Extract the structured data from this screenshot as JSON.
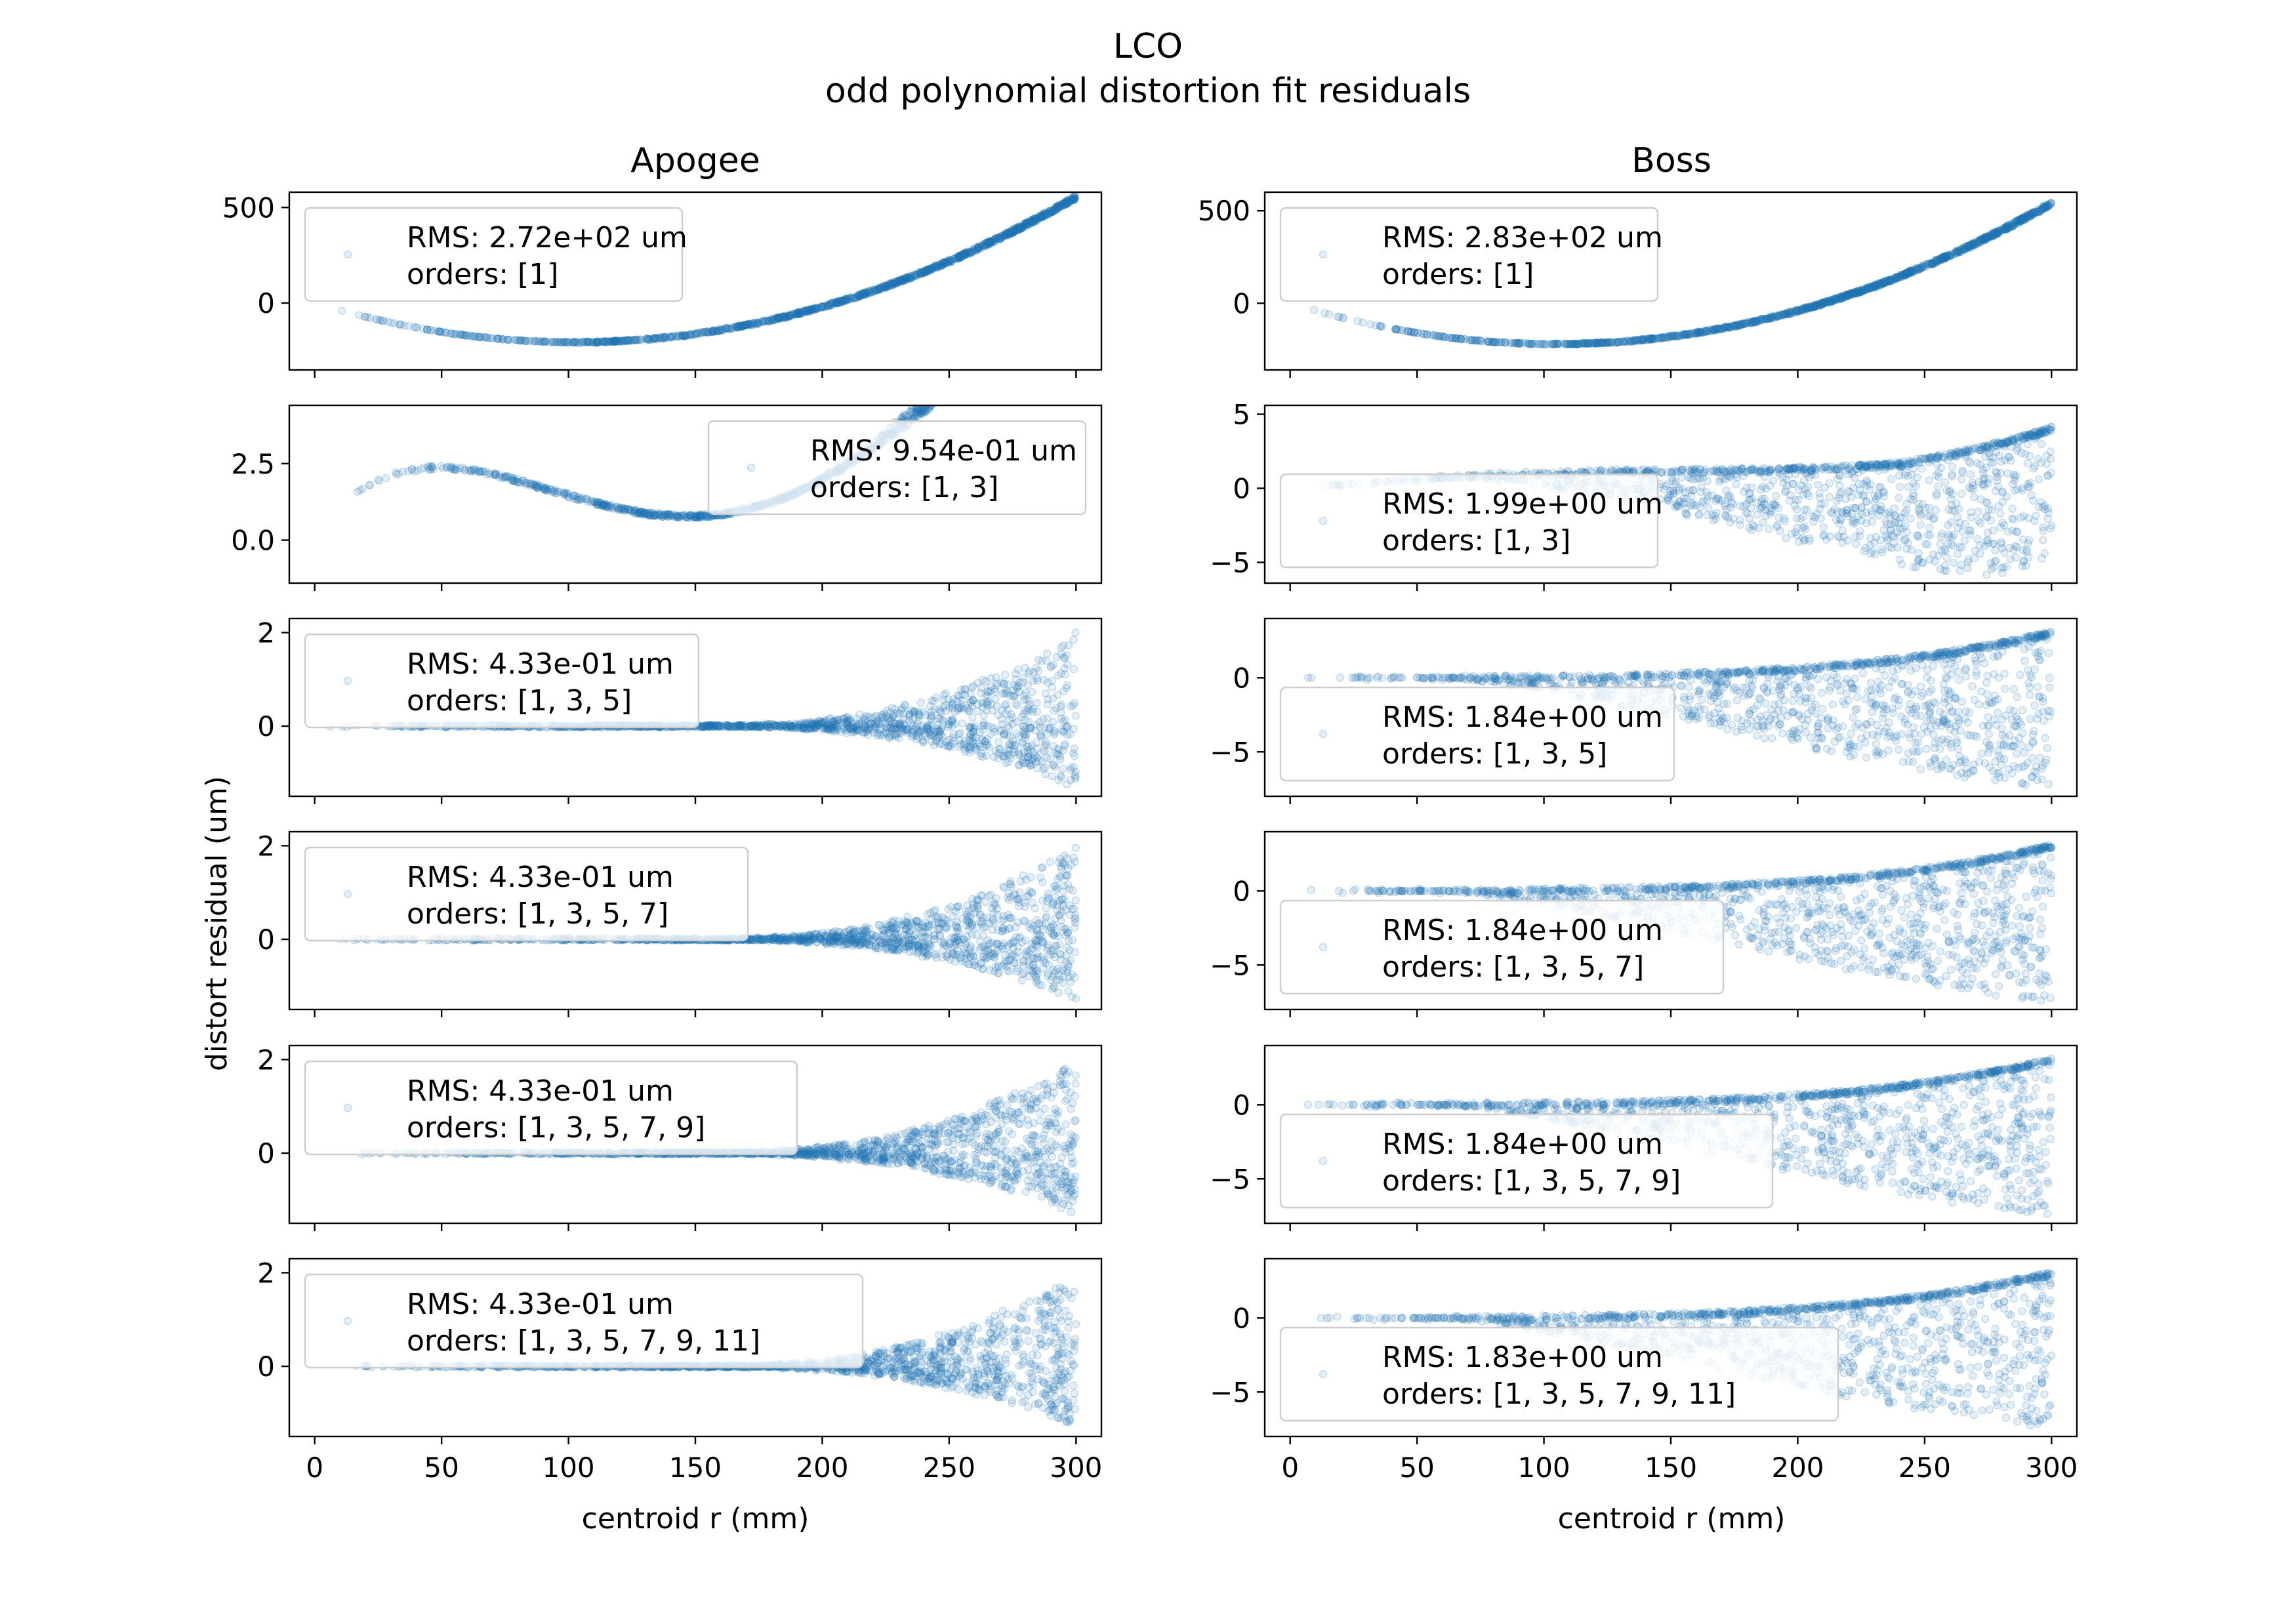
{
  "figure": {
    "title": "LCO",
    "subtitle": "odd polynomial distortion fit residuals",
    "ylabel": "distort residual (um)",
    "xlabel": "centroid r (mm)"
  },
  "columns": [
    "Apogee",
    "Boss"
  ],
  "colors": {
    "points": "#1f77b4",
    "axes": "#000000",
    "legend_border": "#cccccc"
  },
  "chart_data": [
    {
      "type": "scatter",
      "column": "Apogee",
      "row": 1,
      "legend": [
        "RMS: 2.72e+02 um",
        "orders: [1]"
      ],
      "legend_loc": "upper-left",
      "xlim": [
        -10,
        310
      ],
      "ylim": [
        -350,
        580
      ],
      "yticks": [
        {
          "v": 500,
          "label": "500"
        },
        {
          "v": 0,
          "label": "0"
        }
      ],
      "xticks": [
        0,
        50,
        100,
        150,
        200,
        250,
        300
      ],
      "curve": {
        "kind": "poly",
        "c": [
          0,
          -4.0,
          0.0195
        ],
        "spread": [
          0,
          0,
          10
        ]
      }
    },
    {
      "type": "scatter",
      "column": "Apogee",
      "row": 2,
      "legend": [
        "RMS: 9.54e-01 um",
        "orders: [1, 3]"
      ],
      "legend_loc": "upper-right",
      "xlim": [
        -10,
        310
      ],
      "ylim": [
        -1.4,
        4.4
      ],
      "yticks": [
        {
          "v": 2.5,
          "label": "2.5"
        },
        {
          "v": 0.0,
          "label": "0.0"
        }
      ],
      "xticks": [
        0,
        50,
        100,
        150,
        200,
        250,
        300
      ],
      "curve": {
        "kind": "cubic",
        "c": [
          0.2,
          4.8e-05,
          1.9e-07,
          0.89
        ],
        "spread": [
          0,
          0,
          1.6
        ]
      }
    },
    {
      "type": "scatter",
      "column": "Apogee",
      "row": 3,
      "legend": [
        "RMS: 4.33e-01 um",
        "orders: [1, 3, 5]"
      ],
      "legend_loc": "upper-left",
      "xlim": [
        -10,
        310
      ],
      "ylim": [
        -1.5,
        2.3
      ],
      "yticks": [
        {
          "v": 2,
          "label": "2"
        },
        {
          "v": 0,
          "label": "0"
        }
      ],
      "xticks": [
        0,
        50,
        100,
        150,
        200,
        250,
        300
      ],
      "curve": {
        "kind": "fan",
        "c": [
          0,
          0,
          0
        ],
        "spread": [
          0.1,
          2.0,
          -1.3
        ]
      }
    },
    {
      "type": "scatter",
      "column": "Apogee",
      "row": 4,
      "legend": [
        "RMS: 4.33e-01 um",
        "orders: [1, 3, 5, 7]"
      ],
      "legend_loc": "upper-left",
      "xlim": [
        -10,
        310
      ],
      "ylim": [
        -1.5,
        2.3
      ],
      "yticks": [
        {
          "v": 2,
          "label": "2"
        },
        {
          "v": 0,
          "label": "0"
        }
      ],
      "xticks": [
        0,
        50,
        100,
        150,
        200,
        250,
        300
      ],
      "curve": {
        "kind": "fan",
        "c": [
          0,
          0,
          0
        ],
        "spread": [
          0.1,
          2.0,
          -1.3
        ]
      }
    },
    {
      "type": "scatter",
      "column": "Apogee",
      "row": 5,
      "legend": [
        "RMS: 4.33e-01 um",
        "orders: [1, 3, 5, 7, 9]"
      ],
      "legend_loc": "upper-left",
      "xlim": [
        -10,
        310
      ],
      "ylim": [
        -1.5,
        2.3
      ],
      "yticks": [
        {
          "v": 2,
          "label": "2"
        },
        {
          "v": 0,
          "label": "0"
        }
      ],
      "xticks": [
        0,
        50,
        100,
        150,
        200,
        250,
        300
      ],
      "curve": {
        "kind": "fan",
        "c": [
          0,
          0,
          0
        ],
        "spread": [
          0.1,
          2.0,
          -1.3
        ]
      }
    },
    {
      "type": "scatter",
      "column": "Apogee",
      "row": 6,
      "legend": [
        "RMS: 4.33e-01 um",
        "orders: [1, 3, 5, 7, 9, 11]"
      ],
      "legend_loc": "upper-left",
      "xlim": [
        -10,
        310
      ],
      "ylim": [
        -1.5,
        2.3
      ],
      "yticks": [
        {
          "v": 2,
          "label": "2"
        },
        {
          "v": 0,
          "label": "0"
        }
      ],
      "xticks": [
        0,
        50,
        100,
        150,
        200,
        250,
        300
      ],
      "curve": {
        "kind": "fan",
        "c": [
          0,
          0,
          0
        ],
        "spread": [
          0.1,
          2.0,
          -1.3
        ]
      }
    },
    {
      "type": "scatter",
      "column": "Boss",
      "row": 1,
      "legend": [
        "RMS: 2.83e+02 um",
        "orders: [1]"
      ],
      "legend_loc": "upper-left",
      "xlim": [
        -10,
        310
      ],
      "ylim": [
        -360,
        600
      ],
      "yticks": [
        {
          "v": 500,
          "label": "500"
        },
        {
          "v": 0,
          "label": "0"
        }
      ],
      "xticks": [
        0,
        50,
        100,
        150,
        200,
        250,
        300
      ],
      "curve": {
        "kind": "poly",
        "c": [
          0,
          -4.2,
          0.02
        ],
        "spread": [
          0,
          0,
          10
        ]
      }
    },
    {
      "type": "scatter",
      "column": "Boss",
      "row": 2,
      "legend": [
        "RMS: 1.99e+00 um",
        "orders: [1, 3]"
      ],
      "legend_loc": "lower-left",
      "xlim": [
        -10,
        310
      ],
      "ylim": [
        -6.4,
        5.6
      ],
      "yticks": [
        {
          "v": 5,
          "label": "5"
        },
        {
          "v": 0,
          "label": "0"
        },
        {
          "v": -5,
          "label": "−5"
        }
      ],
      "xticks": [
        0,
        50,
        100,
        150,
        200,
        250,
        300
      ],
      "curve": {
        "kind": "bossfan",
        "c": [
          0,
          1.0,
          4.0
        ],
        "spread": [
          150,
          -10.0,
          0
        ]
      }
    },
    {
      "type": "scatter",
      "column": "Boss",
      "row": 3,
      "legend": [
        "RMS: 1.84e+00 um",
        "orders: [1, 3, 5]"
      ],
      "legend_loc": "lower-left",
      "xlim": [
        -10,
        310
      ],
      "ylim": [
        -8,
        4
      ],
      "yticks": [
        {
          "v": 0,
          "label": "0"
        },
        {
          "v": -5,
          "label": "−5"
        }
      ],
      "xticks": [
        0,
        50,
        100,
        150,
        200,
        250,
        300
      ],
      "curve": {
        "kind": "bossfan",
        "c": [
          0,
          0,
          3.0
        ],
        "spread": [
          150,
          -10.5,
          0
        ]
      }
    },
    {
      "type": "scatter",
      "column": "Boss",
      "row": 4,
      "legend": [
        "RMS: 1.84e+00 um",
        "orders: [1, 3, 5, 7]"
      ],
      "legend_loc": "lower-left",
      "xlim": [
        -10,
        310
      ],
      "ylim": [
        -8,
        4
      ],
      "yticks": [
        {
          "v": 0,
          "label": "0"
        },
        {
          "v": -5,
          "label": "−5"
        }
      ],
      "xticks": [
        0,
        50,
        100,
        150,
        200,
        250,
        300
      ],
      "curve": {
        "kind": "bossfan",
        "c": [
          0,
          0,
          3.0
        ],
        "spread": [
          150,
          -10.5,
          0
        ]
      }
    },
    {
      "type": "scatter",
      "column": "Boss",
      "row": 5,
      "legend": [
        "RMS: 1.84e+00 um",
        "orders: [1, 3, 5, 7, 9]"
      ],
      "legend_loc": "lower-left",
      "xlim": [
        -10,
        310
      ],
      "ylim": [
        -8,
        4
      ],
      "yticks": [
        {
          "v": 0,
          "label": "0"
        },
        {
          "v": -5,
          "label": "−5"
        }
      ],
      "xticks": [
        0,
        50,
        100,
        150,
        200,
        250,
        300
      ],
      "curve": {
        "kind": "bossfan",
        "c": [
          0,
          0,
          3.0
        ],
        "spread": [
          150,
          -10.5,
          0
        ]
      }
    },
    {
      "type": "scatter",
      "column": "Boss",
      "row": 6,
      "legend": [
        "RMS: 1.83e+00 um",
        "orders: [1, 3, 5, 7, 9, 11]"
      ],
      "legend_loc": "lower-left",
      "xlim": [
        -10,
        310
      ],
      "ylim": [
        -8,
        4
      ],
      "yticks": [
        {
          "v": 0,
          "label": "0"
        },
        {
          "v": -5,
          "label": "−5"
        }
      ],
      "xticks": [
        0,
        50,
        100,
        150,
        200,
        250,
        300
      ],
      "curve": {
        "kind": "bossfan",
        "c": [
          0,
          0,
          3.0
        ],
        "spread": [
          150,
          -10.5,
          0
        ]
      }
    }
  ]
}
